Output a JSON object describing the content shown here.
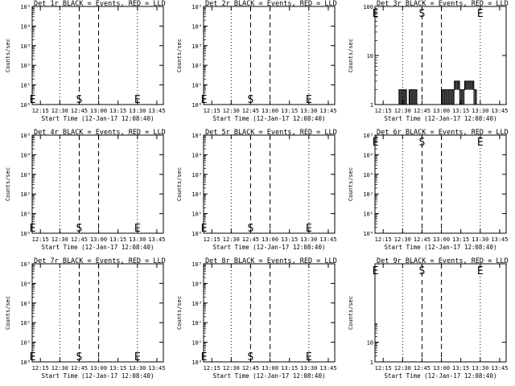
{
  "chart_data": [
    {
      "type": "line",
      "title": "Det 1r BLACK = Events, RED = LLD",
      "ylabel": "Counts/sec",
      "xlabel": "Start Time (12-Jan-17 12:08:40)",
      "yscale": "log",
      "ylim": [
        1,
        100000
      ],
      "yticks": [
        "10⁰",
        "10¹",
        "10²",
        "10³",
        "10⁴",
        "10⁵"
      ],
      "xticks": [
        "12:15",
        "12:30",
        "12:45",
        "13:00",
        "13:15",
        "13:30",
        "13:45"
      ],
      "markers": [
        {
          "label": "E",
          "time": "12:09"
        },
        {
          "label": "S",
          "time": "12:45"
        },
        {
          "label": "E",
          "time": "13:30"
        }
      ],
      "events": []
    },
    {
      "type": "line",
      "title": "Det 2r BLACK = Events, RED = LLD",
      "ylabel": "Counts/sec",
      "xlabel": "Start Time (12-Jan-17 12:08:40)",
      "yscale": "log",
      "ylim": [
        1,
        100000
      ],
      "yticks": [
        "10⁰",
        "10¹",
        "10²",
        "10³",
        "10⁴",
        "10⁵"
      ],
      "xticks": [
        "12:15",
        "12:30",
        "12:45",
        "13:00",
        "13:15",
        "13:30",
        "13:45"
      ],
      "markers": [
        {
          "label": "E",
          "time": "12:09"
        },
        {
          "label": "S",
          "time": "12:45"
        },
        {
          "label": "E",
          "time": "13:30"
        }
      ],
      "events": []
    },
    {
      "type": "line",
      "title": "Det 3r BLACK = Events, RED = LLD",
      "ylabel": "Counts/sec",
      "xlabel": "Start Time (12-Jan-17 12:08:40)",
      "yscale": "log",
      "ylim": [
        1,
        100
      ],
      "yticks": [
        "1",
        "10",
        "100"
      ],
      "xticks": [
        "12:15",
        "12:30",
        "12:45",
        "13:00",
        "13:15",
        "13:30",
        "13:45"
      ],
      "markers": [
        {
          "label": "E",
          "time": "12:09"
        },
        {
          "label": "S",
          "time": "12:45"
        },
        {
          "label": "E",
          "time": "13:30"
        }
      ],
      "events": [
        {
          "start": "12:27",
          "end": "12:33",
          "value": 2
        },
        {
          "start": "12:33",
          "end": "12:35",
          "value": 1
        },
        {
          "start": "12:35",
          "end": "12:41",
          "value": 2
        },
        {
          "start": "12:41",
          "end": "12:43",
          "value": 1
        },
        {
          "start": "12:59",
          "end": "13:00",
          "value": 1
        },
        {
          "start": "13:00",
          "end": "13:10",
          "value": 2
        },
        {
          "start": "13:10",
          "end": "13:14",
          "value": 3
        },
        {
          "start": "13:14",
          "end": "13:18",
          "value": 2
        },
        {
          "start": "13:18",
          "end": "13:25",
          "value": 3
        },
        {
          "start": "13:25",
          "end": "13:27",
          "value": 2
        },
        {
          "start": "13:27",
          "end": "13:29",
          "value": 1
        }
      ]
    },
    {
      "type": "line",
      "title": "Det 4r BLACK = Events, RED = LLD",
      "ylabel": "Counts/sec",
      "xlabel": "Start Time (12-Jan-17 12:08:40)",
      "yscale": "log",
      "ylim": [
        1,
        100000
      ],
      "yticks": [
        "10⁰",
        "10¹",
        "10²",
        "10³",
        "10⁴",
        "10⁵"
      ],
      "xticks": [
        "12:15",
        "12:30",
        "12:45",
        "13:00",
        "13:15",
        "13:30",
        "13:45"
      ],
      "markers": [
        {
          "label": "E",
          "time": "12:09"
        },
        {
          "label": "S",
          "time": "12:45"
        },
        {
          "label": "E",
          "time": "13:30"
        }
      ],
      "events": []
    },
    {
      "type": "line",
      "title": "Det 5r BLACK = Events, RED = LLD",
      "ylabel": "Counts/sec",
      "xlabel": "Start Time (12-Jan-17 12:08:40)",
      "yscale": "log",
      "ylim": [
        1,
        100000
      ],
      "yticks": [
        "10⁰",
        "10¹",
        "10²",
        "10³",
        "10⁴",
        "10⁵"
      ],
      "xticks": [
        "12:15",
        "12:30",
        "12:45",
        "13:00",
        "13:15",
        "13:30",
        "13:45"
      ],
      "markers": [
        {
          "label": "E",
          "time": "12:09"
        },
        {
          "label": "S",
          "time": "12:45"
        },
        {
          "label": "E",
          "time": "13:30"
        }
      ],
      "events": []
    },
    {
      "type": "line",
      "title": "Det 6r BLACK = Events, RED = LLD",
      "ylabel": "Counts/sec",
      "xlabel": "Start Time (12-Jan-17 12:08:40)",
      "yscale": "log",
      "ylim": [
        1,
        100000
      ],
      "yticks": [
        "10⁰",
        "10¹",
        "10²",
        "10³",
        "10⁴",
        "10⁵"
      ],
      "xticks": [
        "12:15",
        "12:30",
        "12:45",
        "13:00",
        "13:15",
        "13:30",
        "13:45"
      ],
      "markers": [
        {
          "label": "E",
          "time": "12:09"
        },
        {
          "label": "S",
          "time": "12:45"
        },
        {
          "label": "E",
          "time": "13:30"
        }
      ],
      "events": []
    },
    {
      "type": "line",
      "title": "Det 7r BLACK = Events, RED = LLD",
      "ylabel": "Counts/sec",
      "xlabel": "Start Time (12-Jan-17 12:08:40)",
      "yscale": "log",
      "ylim": [
        1,
        100000
      ],
      "yticks": [
        "10⁰",
        "10¹",
        "10²",
        "10³",
        "10⁴",
        "10⁵"
      ],
      "xticks": [
        "12:15",
        "12:30",
        "12:45",
        "13:00",
        "13:15",
        "13:30",
        "13:45"
      ],
      "markers": [
        {
          "label": "E",
          "time": "12:09"
        },
        {
          "label": "S",
          "time": "12:45"
        },
        {
          "label": "E",
          "time": "13:30"
        }
      ],
      "events": []
    },
    {
      "type": "line",
      "title": "Det 8r BLACK = Events, RED = LLD",
      "ylabel": "Counts/sec",
      "xlabel": "Start Time (12-Jan-17 12:08:40)",
      "yscale": "log",
      "ylim": [
        1,
        100000
      ],
      "yticks": [
        "10⁰",
        "10¹",
        "10²",
        "10³",
        "10⁴",
        "10⁵"
      ],
      "xticks": [
        "12:15",
        "12:30",
        "12:45",
        "13:00",
        "13:15",
        "13:30",
        "13:45"
      ],
      "markers": [
        {
          "label": "E",
          "time": "12:09"
        },
        {
          "label": "S",
          "time": "12:45"
        },
        {
          "label": "E",
          "time": "13:30"
        }
      ],
      "events": []
    },
    {
      "type": "line",
      "title": "Det 9r BLACK = Events, RED = LLD",
      "ylabel": "Counts/sec",
      "xlabel": "Start Time (12-Jan-17 12:08:40)",
      "yscale": "log",
      "ylim": [
        1,
        100000
      ],
      "yticks": [
        "1",
        "10"
      ],
      "xticks": [
        "12:15",
        "12:30",
        "12:45",
        "13:00",
        "13:15",
        "13:30",
        "13:45"
      ],
      "markers": [
        {
          "label": "E",
          "time": "12:09"
        },
        {
          "label": "S",
          "time": "12:45"
        },
        {
          "label": "E",
          "time": "13:30"
        }
      ],
      "events": []
    }
  ],
  "colors": {
    "events": "#000000",
    "lld": "#ff0000",
    "background": "#ffffff"
  }
}
